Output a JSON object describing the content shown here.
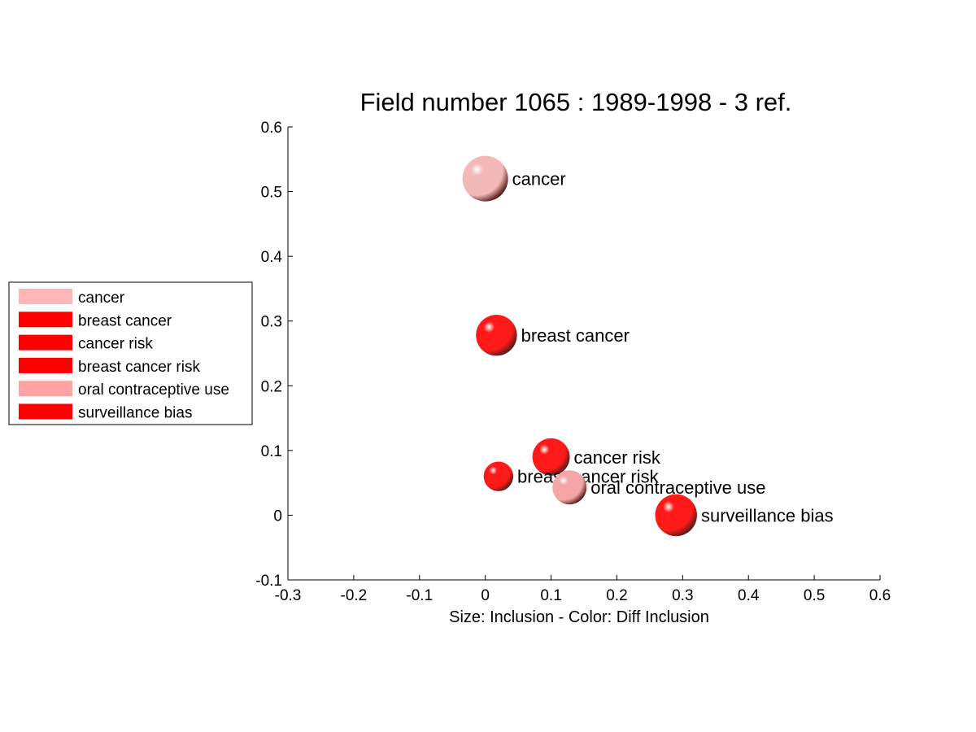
{
  "chart_data": {
    "type": "scatter",
    "title": "Field number 1065 : 1989-1998  - 3 ref.",
    "xlabel": "Size: Inclusion - Color: Diff Inclusion",
    "ylabel": "",
    "xlim": [
      -0.3,
      0.6
    ],
    "ylim": [
      -0.1,
      0.6
    ],
    "xticks": [
      "-0.3",
      "-0.2",
      "-0.1",
      "0",
      "0.1",
      "0.2",
      "0.3",
      "0.4",
      "0.5",
      "0.6"
    ],
    "yticks": [
      "-0.1",
      "0",
      "0.1",
      "0.2",
      "0.3",
      "0.4",
      "0.5",
      "0.6"
    ],
    "legend_position": "left",
    "points": [
      {
        "label": "cancer",
        "x": 0.0,
        "y": 0.52,
        "size": 1.0,
        "color": "#f3b8b8"
      },
      {
        "label": "breast cancer",
        "x": 0.017,
        "y": 0.278,
        "size": 0.9,
        "color": "#ff1a1a"
      },
      {
        "label": "cancer risk",
        "x": 0.1,
        "y": 0.09,
        "size": 0.82,
        "color": "#ff1a1a"
      },
      {
        "label": "breast cancer risk",
        "x": 0.02,
        "y": 0.06,
        "size": 0.65,
        "color": "#ff1a1a"
      },
      {
        "label": "oral contraceptive use",
        "x": 0.128,
        "y": 0.043,
        "size": 0.75,
        "color": "#f4a6a6"
      },
      {
        "label": "surveillance bias",
        "x": 0.29,
        "y": 0.0,
        "size": 0.92,
        "color": "#ff1a1a"
      }
    ],
    "legend": [
      {
        "label": "cancer",
        "color": "#ffb6b6"
      },
      {
        "label": "breast cancer",
        "color": "#ff0000"
      },
      {
        "label": "cancer risk",
        "color": "#ff0000"
      },
      {
        "label": "breast cancer risk",
        "color": "#ff0000"
      },
      {
        "label": "oral contraceptive use",
        "color": "#ffa3a3"
      },
      {
        "label": "surveillance bias",
        "color": "#ff0000"
      }
    ]
  }
}
